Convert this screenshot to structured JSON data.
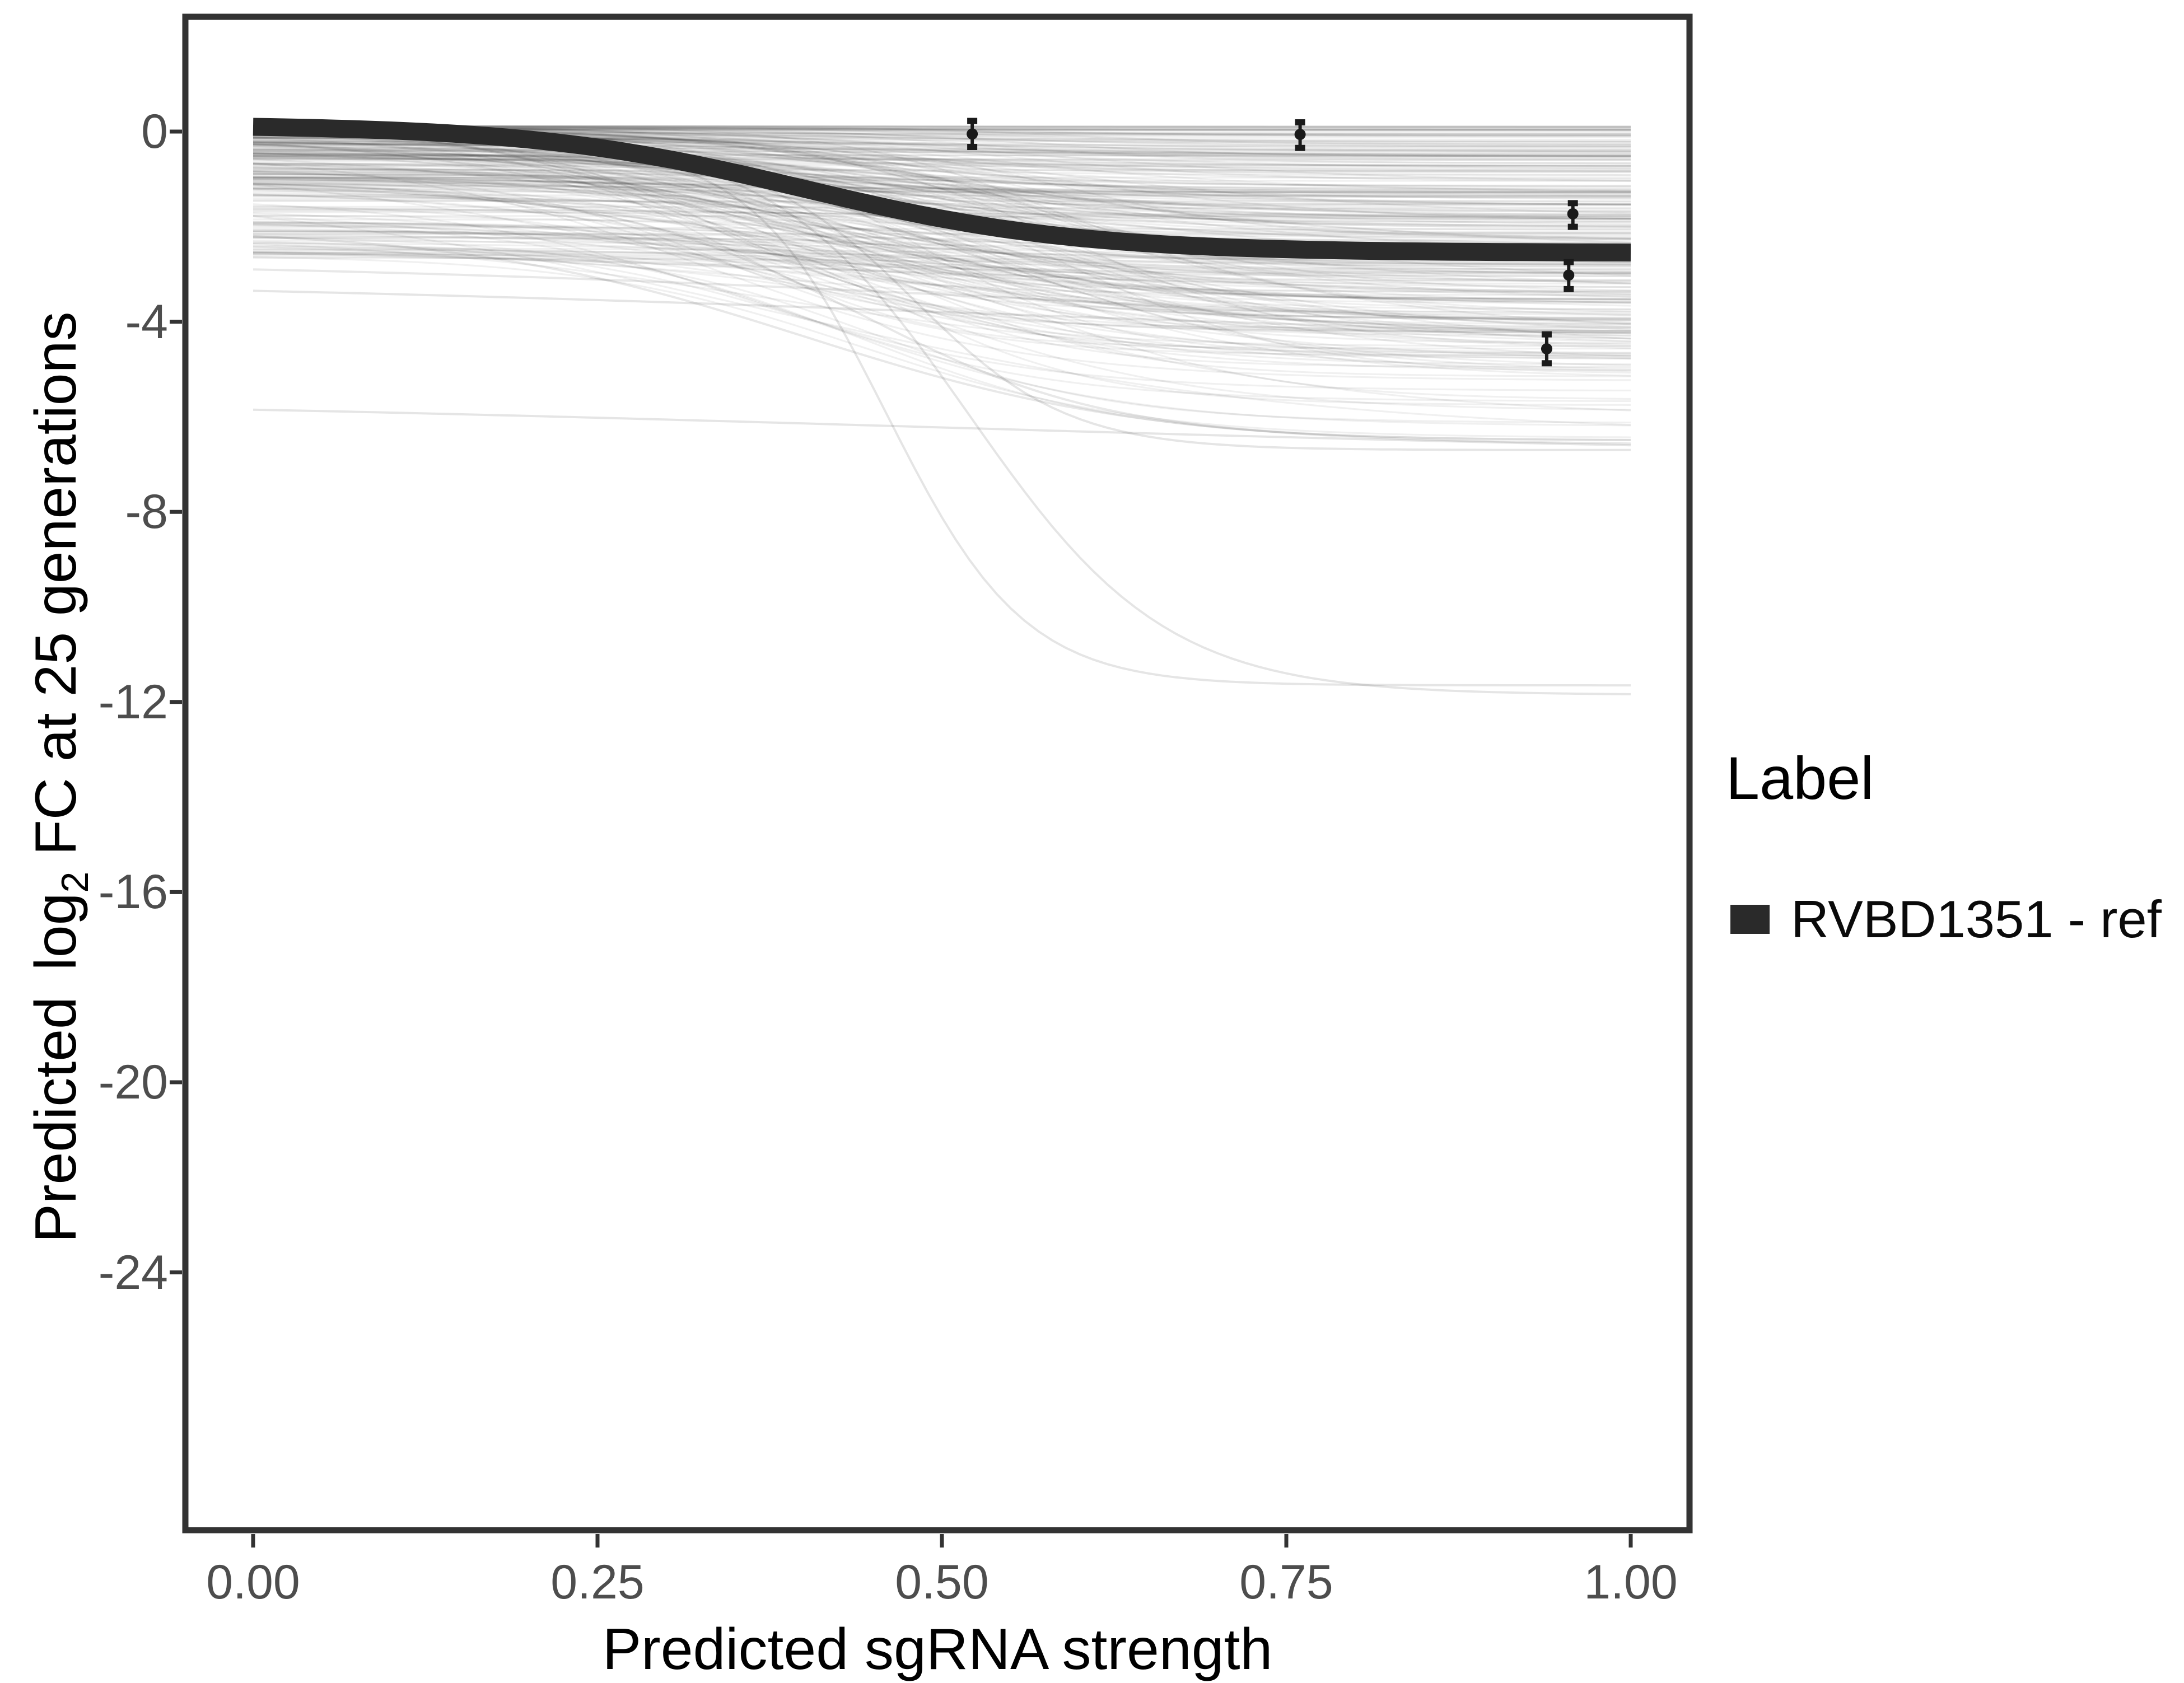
{
  "chart_data": {
    "type": "line",
    "title": "",
    "xlabel": "Predicted sgRNA strength",
    "ylabel_parts": {
      "pre": "Predicted",
      "log": "log",
      "sub": "2",
      "post": " FC at 25 generations"
    },
    "x_ticks": [
      "0.00",
      "0.25",
      "0.50",
      "0.75",
      "1.00"
    ],
    "x_tick_values": [
      0,
      0.25,
      0.5,
      0.75,
      1.0
    ],
    "y_ticks": [
      "0",
      "-4",
      "-8",
      "-12",
      "-16",
      "-20",
      "-24"
    ],
    "y_tick_values": [
      0,
      -4,
      -8,
      -12,
      -16,
      -20,
      -24
    ],
    "xlim": [
      -0.049,
      1.043
    ],
    "ylim": [
      2.4,
      -29.4
    ],
    "grid": "off",
    "legend_position": "right",
    "legend": {
      "title": "Label",
      "entries": [
        {
          "label": "RVBD1351 - ref",
          "color": "#2a2a2a"
        }
      ]
    },
    "main_series": {
      "name": "RVBD1351 - ref",
      "color": "#2a2a2a",
      "stroke_width": 32,
      "sigmoid": {
        "start": 0.1,
        "drop": 2.65,
        "mid": 0.4,
        "k": 10.15
      },
      "samples": [
        [
          0,
          0.1
        ],
        [
          0.1,
          0.02
        ],
        [
          0.2,
          -0.17
        ],
        [
          0.3,
          -0.57
        ],
        [
          0.4,
          -1.2
        ],
        [
          0.5,
          -1.83
        ],
        [
          0.6,
          -2.24
        ],
        [
          0.7,
          -2.42
        ],
        [
          0.8,
          -2.5
        ],
        [
          0.9,
          -2.53
        ],
        [
          1.0,
          -2.55
        ]
      ]
    },
    "points": [
      {
        "x": 0.522,
        "y": -0.05,
        "lo": -0.33,
        "hi": 0.23
      },
      {
        "x": 0.76,
        "y": -0.06,
        "lo": -0.35,
        "hi": 0.2
      },
      {
        "x": 0.958,
        "y": -1.73,
        "lo": -2.01,
        "hi": -1.5
      },
      {
        "x": 0.955,
        "y": -3.02,
        "lo": -3.32,
        "hi": -2.74
      },
      {
        "x": 0.939,
        "y": -4.57,
        "lo": -4.88,
        "hi": -4.26
      }
    ],
    "points_color": "#1a1a1a",
    "ensemble": {
      "count": 300,
      "seed": 42,
      "alpha": 0.06,
      "stroke_width": 3.2,
      "color": "#000000",
      "start": {
        "base": 0.12,
        "scale": 2.8,
        "pow": 2.2
      },
      "drop": {
        "scale": 4.8,
        "pow": 2.0
      },
      "mid": {
        "min": 0.32,
        "range": 0.28
      },
      "k": {
        "min": 5,
        "range": 9
      }
    },
    "outliers": [
      {
        "start": -0.25,
        "drop": 11.4,
        "mid": 0.46,
        "k": 20.0,
        "alpha": 0.1
      },
      {
        "start": -0.1,
        "drop": 11.75,
        "mid": 0.52,
        "k": 14.0,
        "alpha": 0.1
      },
      {
        "start": -0.4,
        "drop": 6.3,
        "mid": 0.48,
        "k": 18.0,
        "alpha": 0.1
      },
      {
        "start": -1.2,
        "drop": 5.3,
        "mid": 0.44,
        "k": 11.0,
        "alpha": 0.09
      },
      {
        "start": -2.2,
        "drop": 4.4,
        "mid": 0.4,
        "k": 8.0,
        "alpha": 0.09
      },
      {
        "start": -5.85,
        "drop": 1.05,
        "mid": 0.5,
        "k": 2.5,
        "alpha": 0.1
      },
      {
        "start": -3.35,
        "drop": 1.15,
        "mid": 0.5,
        "k": 3.0,
        "alpha": 0.1
      },
      {
        "start": -2.9,
        "drop": 1.4,
        "mid": 0.55,
        "k": 3.5,
        "alpha": 0.09
      },
      {
        "start": -2.55,
        "drop": 1.1,
        "mid": 0.5,
        "k": 3.0,
        "alpha": 0.08
      }
    ],
    "axis_color": "#333333",
    "tick_label_color": "#4d4d4d"
  }
}
